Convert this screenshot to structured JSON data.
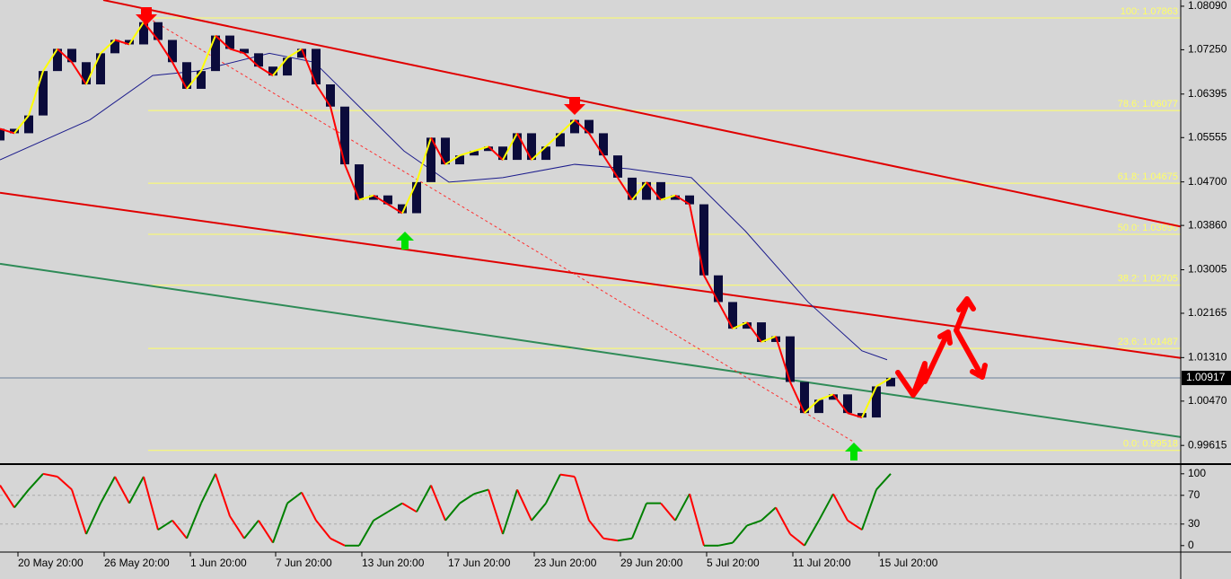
{
  "chart_data": {
    "type": "candlestick",
    "xlim": [
      0,
      328.75
    ],
    "ylim": [
      0.99272,
      1.0821
    ],
    "yticks": [
      {
        "value": 1.0809,
        "label": "1.08090"
      },
      {
        "value": 1.0725,
        "label": "1.07250"
      },
      1.06395,
      1.05555,
      {
        "value": 1.047,
        "label": "1.04700"
      },
      {
        "value": 1.0386,
        "label": "1.03860"
      },
      1.03005,
      1.02165,
      {
        "value": 1.0131,
        "label": "1.01310"
      },
      {
        "value": 1.0047,
        "label": "1.00470"
      },
      0.99615
    ],
    "xticks": [
      {
        "value": 5,
        "label": "20 May 20:00"
      },
      {
        "value": 29,
        "label": "26 May 20:00"
      },
      {
        "value": 53,
        "label": "1 Jun 20:00"
      },
      {
        "value": 76.75,
        "label": "7 Jun 20:00"
      },
      {
        "value": 100.75,
        "label": "13 Jun 20:00"
      },
      {
        "value": 124.75,
        "label": "17 Jun 20:00"
      },
      {
        "value": 148.75,
        "label": "23 Jun 20:00"
      },
      {
        "value": 172.75,
        "label": "29 Jun 20:00"
      },
      {
        "value": 196.75,
        "label": "5 Jul 20:00"
      },
      {
        "value": 220.75,
        "label": "11 Jul 20:00"
      },
      {
        "value": 244.75,
        "label": "15 Jul 20:00"
      }
    ],
    "candles": {
      "color": "#0b0b3b",
      "up_color": "#ffff00",
      "down_color": "#ff0000",
      "x": [
        0,
        4,
        8,
        12,
        16,
        20,
        24,
        28,
        32,
        36,
        40,
        44,
        48,
        52,
        56,
        60,
        64,
        68,
        72,
        76,
        80,
        84,
        88,
        92,
        96,
        100,
        104,
        108,
        112,
        116,
        120,
        124,
        128,
        132,
        136,
        140,
        144,
        148,
        152,
        156,
        160,
        164,
        168,
        172,
        176,
        180,
        184,
        188,
        192,
        196,
        200,
        204,
        208,
        212,
        216,
        220,
        224,
        228,
        232,
        236,
        240,
        244,
        248
      ],
      "open": [
        1.055,
        1.05725,
        1.05639,
        1.05982,
        1.06839,
        1.07267,
        1.0701,
        1.06582,
        1.07182,
        1.07439,
        1.07353,
        1.07782,
        1.07439,
        1.0701,
        1.06496,
        1.06839,
        1.07524,
        1.07267,
        1.07182,
        1.06925,
        1.06753,
        1.07096,
        1.07267,
        1.06582,
        1.06153,
        1.05039,
        1.04354,
        1.04439,
        1.04268,
        1.04096,
        1.04696,
        1.05553,
        1.05039,
        1.0521,
        1.05296,
        1.05382,
        1.05125,
        1.05639,
        1.05125,
        1.05382,
        1.05639,
        1.05896,
        1.05639,
        1.05211,
        1.04782,
        1.04354,
        1.04696,
        1.04354,
        1.04439,
        1.04268,
        1.02897,
        1.02382,
        1.01868,
        1.0199,
        1.01611,
        1.0172,
        1.0084,
        1.0024,
        1.00497,
        1.006,
        1.0024,
        1.00154,
        1.00754
      ],
      "close": [
        1.05725,
        1.05639,
        1.05982,
        1.06839,
        1.07267,
        1.0701,
        1.06582,
        1.07182,
        1.07439,
        1.07353,
        1.07782,
        1.07439,
        1.0701,
        1.06496,
        1.06839,
        1.07524,
        1.07267,
        1.07182,
        1.06925,
        1.06753,
        1.07096,
        1.07267,
        1.06582,
        1.06153,
        1.05039,
        1.04354,
        1.04439,
        1.04268,
        1.04096,
        1.04696,
        1.05553,
        1.05039,
        1.0521,
        1.05296,
        1.05382,
        1.05125,
        1.05639,
        1.05125,
        1.05382,
        1.05639,
        1.05896,
        1.05639,
        1.05211,
        1.04782,
        1.04354,
        1.04696,
        1.04354,
        1.04439,
        1.04268,
        1.02897,
        1.02382,
        1.01868,
        1.0199,
        1.01611,
        1.0172,
        1.0084,
        1.0024,
        1.00497,
        1.006,
        1.0024,
        1.00154,
        1.00754,
        1.00917
      ]
    },
    "moving_average": {
      "color": "#1c1c8c",
      "x": [
        0,
        25,
        42.5,
        55,
        75,
        87.5,
        100,
        112.5,
        125,
        140,
        160,
        175,
        192.5,
        207.5,
        225,
        240,
        247
      ],
      "values": [
        1.05125,
        1.05896,
        1.06753,
        1.06839,
        1.07182,
        1.0701,
        1.06153,
        1.05296,
        1.04696,
        1.04782,
        1.05039,
        1.04953,
        1.04782,
        1.03754,
        1.02382,
        1.0144,
        1.01268
      ]
    },
    "fib_levels": {
      "color": "#ffff66",
      "x": [
        41.25,
        328.75
      ],
      "levels": [
        {
          "value": 1.07863,
          "label": "100: 1.07863"
        },
        {
          "value": 1.06077,
          "label": "78.6: 1.06077"
        },
        {
          "value": 1.04675,
          "label": "61.8: 1.04675"
        },
        {
          "value": 1.0369,
          "label": "50.0: 1.03690"
        },
        {
          "value": 1.02705,
          "label": "38.2: 1.02705"
        },
        {
          "value": 1.01487,
          "label": "23.6: 1.01487"
        },
        {
          "value": 0.99518,
          "label": "0.0: 0.99518"
        }
      ]
    },
    "trendlines": [
      {
        "color": "#e00000",
        "x": [
          28.75,
          328.75
        ],
        "values": [
          1.0821,
          1.03839
        ]
      },
      {
        "color": "#e00000",
        "x": [
          0,
          328.75
        ],
        "values": [
          1.04491,
          1.01303
        ]
      },
      {
        "color": "#2e8b57",
        "x": [
          0,
          328.75
        ],
        "values": [
          1.0312,
          0.99777
        ]
      },
      {
        "color": "#ff3030",
        "dashed": true,
        "x": [
          41.25,
          237.5
        ],
        "values": [
          1.07867,
          0.99691
        ]
      }
    ],
    "current_price": 1.00917,
    "oscillator": {
      "ylim": [
        -9,
        111
      ],
      "yticks": [
        100,
        70,
        30,
        0
      ],
      "levels": [
        70,
        30
      ],
      "up_color": "#008000",
      "down_color": "#ff0000",
      "values": [
        84,
        53,
        78,
        100,
        96,
        78,
        16,
        59,
        96,
        59,
        96,
        22,
        35,
        10,
        59,
        100,
        41,
        10,
        35,
        4,
        59,
        74,
        35,
        10,
        0,
        0,
        35,
        47,
        59,
        47,
        84,
        35,
        59,
        72,
        78,
        16,
        78,
        35,
        59,
        99,
        96,
        35,
        10,
        7,
        10,
        59,
        59,
        35,
        72,
        0,
        0,
        4,
        28,
        35,
        53,
        16,
        0,
        35,
        72,
        35,
        22,
        78,
        100
      ]
    }
  }
}
